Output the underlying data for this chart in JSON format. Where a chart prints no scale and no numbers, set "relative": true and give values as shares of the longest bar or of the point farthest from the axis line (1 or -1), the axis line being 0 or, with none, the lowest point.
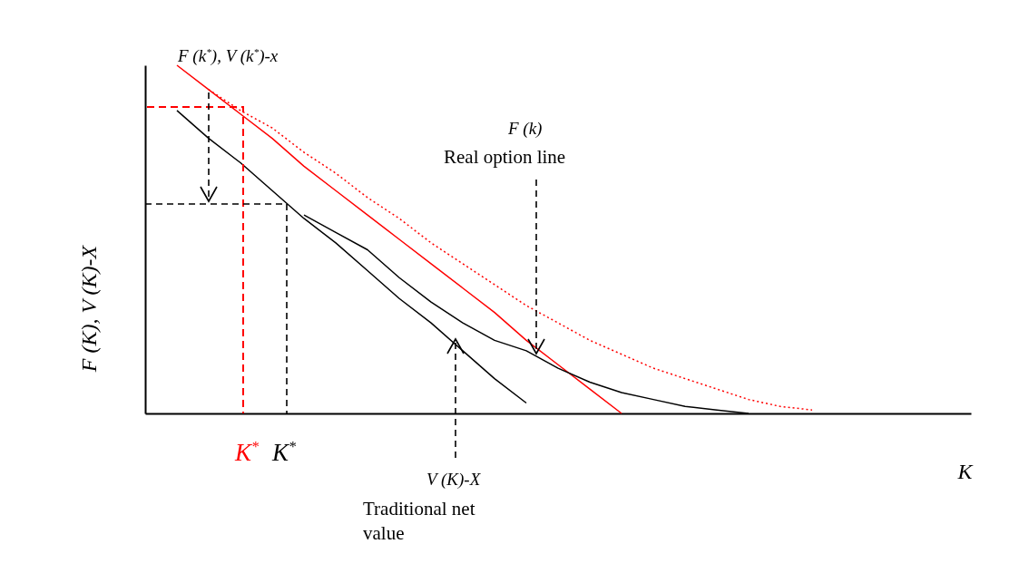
{
  "chart_data": {
    "type": "line",
    "relative": true,
    "xlabel": "K",
    "ylabel": "F (K), V (K)-X",
    "marker": "none",
    "categories": [
      null,
      null,
      null,
      null,
      null,
      null,
      null,
      null,
      null,
      null,
      null,
      null,
      null,
      null,
      null,
      null,
      null,
      null,
      null,
      null,
      null,
      null,
      null,
      null,
      null,
      null,
      null
    ],
    "series": [
      {
        "color": "#000000",
        "line_style": "solid",
        "values": [
          null,
          0.87,
          0.79,
          0.72,
          0.64,
          0.56,
          0.49,
          0.41,
          0.33,
          0.26,
          0.18,
          0.1,
          0.03,
          null,
          null,
          null,
          null,
          null,
          null,
          null,
          null,
          null,
          null,
          null,
          null,
          null,
          null
        ]
      },
      {
        "color": "#ff0000",
        "line_style": "solid",
        "values": [
          null,
          1,
          0.93,
          0.86,
          0.79,
          0.71,
          0.64,
          0.57,
          0.5,
          0.43,
          0.36,
          0.29,
          0.21,
          0.14,
          0.07,
          0,
          null,
          null,
          null,
          null,
          null,
          null,
          null,
          null,
          null,
          null,
          null
        ]
      },
      {
        "color": "#ff0000",
        "line_style": "dotted",
        "values": [
          null,
          null,
          0.93,
          0.87,
          0.82,
          0.75,
          0.69,
          0.62,
          0.56,
          0.49,
          0.43,
          0.37,
          0.31,
          0.26,
          0.21,
          0.17,
          0.13,
          0.1,
          0.07,
          0.04,
          0.02,
          0.01,
          null,
          null,
          null,
          null,
          null
        ]
      },
      {
        "color": "#000000",
        "line_style": "solid",
        "values": [
          null,
          null,
          null,
          null,
          null,
          0.57,
          0.52,
          0.47,
          0.39,
          0.32,
          0.26,
          0.21,
          0.18,
          0.13,
          0.09,
          0.06,
          0.04,
          0.02,
          0.01,
          0,
          null,
          null,
          null,
          null,
          null,
          null,
          null
        ]
      }
    ],
    "annotations": [
      "F (k$^{*}$), V (k$^{*}$)-x",
      "F (k)",
      "Real option line",
      "V (K)-X",
      "Traditional net value",
      "K$^{*}$",
      "K$^{*}$"
    ]
  }
}
